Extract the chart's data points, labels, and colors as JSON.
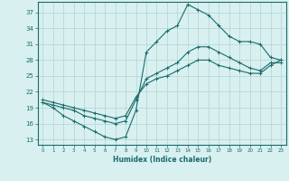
{
  "xlabel": "Humidex (Indice chaleur)",
  "bg_color": "#d8f0f0",
  "grid_color": "#b8d8d8",
  "line_color": "#1a6b6b",
  "xlim": [
    -0.5,
    23.5
  ],
  "ylim": [
    12,
    39
  ],
  "yticks": [
    13,
    16,
    19,
    22,
    25,
    28,
    31,
    34,
    37
  ],
  "xticks": [
    0,
    1,
    2,
    3,
    4,
    5,
    6,
    7,
    8,
    9,
    10,
    11,
    12,
    13,
    14,
    15,
    16,
    17,
    18,
    19,
    20,
    21,
    22,
    23
  ],
  "line1_x": [
    0,
    1,
    2,
    3,
    4,
    5,
    6,
    7,
    8,
    9,
    10,
    11,
    12,
    13,
    14,
    15,
    16,
    17,
    18,
    19,
    20,
    21,
    22,
    23
  ],
  "line1_y": [
    20.0,
    19.0,
    17.5,
    16.5,
    15.5,
    14.5,
    13.5,
    13.0,
    13.5,
    18.5,
    29.5,
    31.5,
    33.5,
    34.5,
    38.5,
    37.5,
    36.5,
    34.5,
    32.5,
    31.5,
    31.5,
    31.0,
    28.5,
    28.0
  ],
  "line2_x": [
    0,
    1,
    2,
    3,
    4,
    5,
    6,
    7,
    8,
    9,
    10,
    11,
    12,
    13,
    14,
    15,
    16,
    17,
    18,
    19,
    20,
    21,
    22,
    23
  ],
  "line2_y": [
    20.0,
    19.5,
    19.0,
    18.5,
    17.5,
    17.0,
    16.5,
    16.0,
    16.5,
    20.5,
    24.5,
    25.5,
    26.5,
    27.5,
    29.5,
    30.5,
    30.5,
    29.5,
    28.5,
    27.5,
    26.5,
    26.0,
    27.5,
    27.5
  ],
  "line3_x": [
    0,
    1,
    2,
    3,
    4,
    5,
    6,
    7,
    8,
    9,
    10,
    11,
    12,
    13,
    14,
    15,
    16,
    17,
    18,
    19,
    20,
    21,
    22,
    23
  ],
  "line3_y": [
    20.5,
    20.0,
    19.5,
    19.0,
    18.5,
    18.0,
    17.5,
    17.0,
    17.5,
    21.0,
    23.5,
    24.5,
    25.0,
    26.0,
    27.0,
    28.0,
    28.0,
    27.0,
    26.5,
    26.0,
    25.5,
    25.5,
    27.0,
    28.0
  ]
}
